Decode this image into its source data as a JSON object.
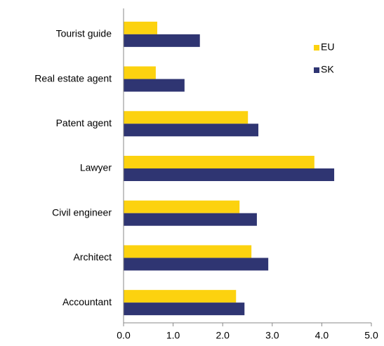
{
  "chart_data": {
    "type": "hbar",
    "categories": [
      "Tourist guide",
      "Real estate agent",
      "Patent agent",
      "Lawyer",
      "Civil engineer",
      "Architect",
      "Accountant"
    ],
    "series": [
      {
        "name": "EU",
        "color": "#fcd20f",
        "values": [
          0.68,
          0.65,
          2.51,
          3.85,
          2.34,
          2.58,
          2.27
        ]
      },
      {
        "name": "SK",
        "color": "#2f3572",
        "values": [
          1.54,
          1.23,
          2.72,
          4.25,
          2.69,
          2.92,
          2.44
        ]
      }
    ],
    "xlim": [
      0,
      5
    ],
    "xticks": [
      {
        "value": 0,
        "label": "0.0"
      },
      {
        "value": 1,
        "label": "1.0"
      },
      {
        "value": 2,
        "label": "2.0"
      },
      {
        "value": 3,
        "label": "3.0"
      },
      {
        "value": 4,
        "label": "4.0"
      },
      {
        "value": 5,
        "label": "5.0"
      }
    ],
    "legend": "top-right"
  }
}
